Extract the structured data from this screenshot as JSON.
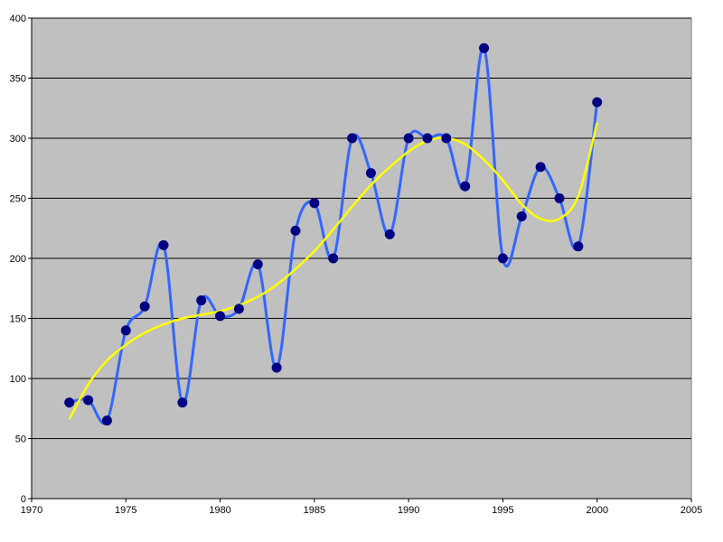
{
  "chart_data": {
    "type": "line",
    "xlim": [
      1970,
      2005
    ],
    "ylim": [
      0,
      400
    ],
    "x_ticks": [
      1970,
      1975,
      1980,
      1985,
      1990,
      1995,
      2000,
      2005
    ],
    "y_ticks": [
      0,
      50,
      100,
      150,
      200,
      250,
      300,
      350,
      400
    ],
    "grid": "horizontal",
    "legend": "none",
    "plot_background": "#c0c0c0",
    "series": [
      {
        "style": "smoothed line with markers",
        "line_color": "#3366ff",
        "marker_color": "#000080",
        "x": [
          1972,
          1973,
          1974,
          1975,
          1976,
          1977,
          1978,
          1979,
          1980,
          1981,
          1982,
          1983,
          1984,
          1985,
          1986,
          1987,
          1988,
          1989,
          1990,
          1991,
          1992,
          1993,
          1994,
          1995,
          1996,
          1997,
          1998,
          1999,
          2000
        ],
        "y": [
          80,
          82,
          65,
          140,
          160,
          211,
          80,
          165,
          152,
          158,
          195,
          109,
          223,
          246,
          200,
          300,
          271,
          220,
          300,
          300,
          300,
          260,
          375,
          200,
          235,
          276,
          250,
          210,
          330
        ]
      },
      {
        "style": "polynomial trendline",
        "line_color": "#ffff00",
        "x": [
          1972,
          1973,
          1974,
          1975,
          1976,
          1977,
          1978,
          1979,
          1980,
          1981,
          1982,
          1983,
          1984,
          1985,
          1986,
          1987,
          1988,
          1989,
          1990,
          1991,
          1992,
          1993,
          1994,
          1995,
          1996,
          1997,
          1998,
          1999,
          2000
        ],
        "y": [
          66,
          95,
          115,
          128,
          138,
          145,
          150,
          153,
          156,
          161,
          168,
          178,
          191,
          206,
          224,
          243,
          261,
          276,
          289,
          298,
          300,
          295,
          282,
          265,
          245,
          233,
          233,
          252,
          313
        ]
      }
    ]
  }
}
